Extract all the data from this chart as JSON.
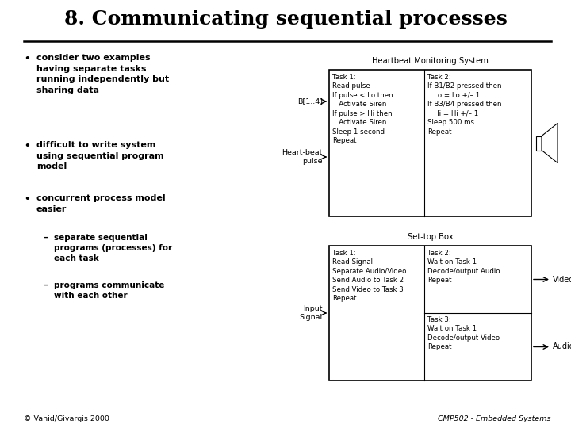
{
  "title": "8. Communicating sequential processes",
  "background_color": "#ffffff",
  "title_fontsize": 18,
  "title_font": "serif",
  "bullets": [
    "consider two examples\nhaving separate tasks\nrunning independently but\nsharing data",
    "difficult to write system\nusing sequential program\nmodel",
    "concurrent process model\neasier"
  ],
  "sub_bullets": [
    "separate sequential\nprograms (processes) for\neach task",
    "programs communicate\nwith each other"
  ],
  "heartbeat_label": "Heartbeat Monitoring System",
  "hb_b_label": "B[1..4]",
  "hb_beat_label": "Heart-beat\npulse",
  "hb_task1": "Task 1:\nRead pulse\nIf pulse < Lo then\n   Activate Siren\nIf pulse > Hi then\n   Activate Siren\nSleep 1 second\nRepeat",
  "hb_task2": "Task 2:\nIf B1/B2 pressed then\n   Lo = Lo +/– 1\nIf B3/B4 pressed then\n   Hi = Hi +/– 1\nSleep 500 ms\nRepeat",
  "settop_label": "Set-top Box",
  "st_input_label": "Input\nSignal",
  "st_task1": "Task 1:\nRead Signal\nSeparate Audio/Video\nSend Audio to Task 2\nSend Video to Task 3\nRepeat",
  "st_task2": "Task 2:\nWait on Task 1\nDecode/output Audio\nRepeat",
  "st_task3": "Task 3:\nWait on Task 1\nDecode/output Video\nRepeat",
  "st_video_label": "Video",
  "st_audio_label": "Audio",
  "footer_left": "© Vahid/Givargis 2000",
  "footer_right": "CMP502 - Embedded Systems"
}
